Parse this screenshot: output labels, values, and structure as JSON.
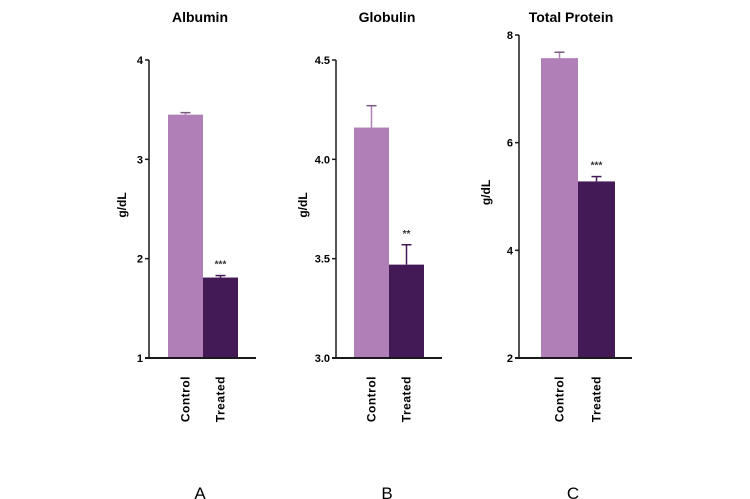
{
  "chart_data": [
    {
      "type": "bar",
      "panel_label": "A",
      "title": "Albumin",
      "ylabel": "g/dL",
      "categories": [
        "Control",
        "Treated"
      ],
      "values": [
        3.45,
        1.81
      ],
      "error": [
        0.02,
        0.02
      ],
      "significance": [
        "",
        "***"
      ],
      "ylim": [
        1,
        4
      ],
      "yticks": [
        "1",
        "2",
        "3",
        "4"
      ],
      "ytick_values": [
        1,
        2,
        3,
        4
      ],
      "grid": false
    },
    {
      "type": "bar",
      "panel_label": "B",
      "title": "Globulin",
      "ylabel": "g/dL",
      "categories": [
        "Control",
        "Treated"
      ],
      "values": [
        4.16,
        3.47
      ],
      "error": [
        0.11,
        0.1
      ],
      "significance": [
        "",
        "**"
      ],
      "ylim": [
        3.0,
        4.5
      ],
      "yticks": [
        "3.0",
        "3.5",
        "4.0",
        "4.5"
      ],
      "ytick_values": [
        3.0,
        3.5,
        4.0,
        4.5
      ],
      "grid": false
    },
    {
      "type": "bar",
      "panel_label": "C",
      "title": "Total Protein",
      "ylabel": "g/dL",
      "categories": [
        "Control",
        "Treated"
      ],
      "values": [
        7.57,
        5.28
      ],
      "error": [
        0.11,
        0.09
      ],
      "significance": [
        "",
        "***"
      ],
      "ylim": [
        2,
        8
      ],
      "yticks": [
        "2",
        "4",
        "6",
        "8"
      ],
      "ytick_values": [
        2,
        4,
        6,
        8
      ],
      "grid": false
    }
  ],
  "colors": {
    "Control": "#b07fb8",
    "Treated": "#431a55",
    "axis": "#1a1a1a"
  }
}
